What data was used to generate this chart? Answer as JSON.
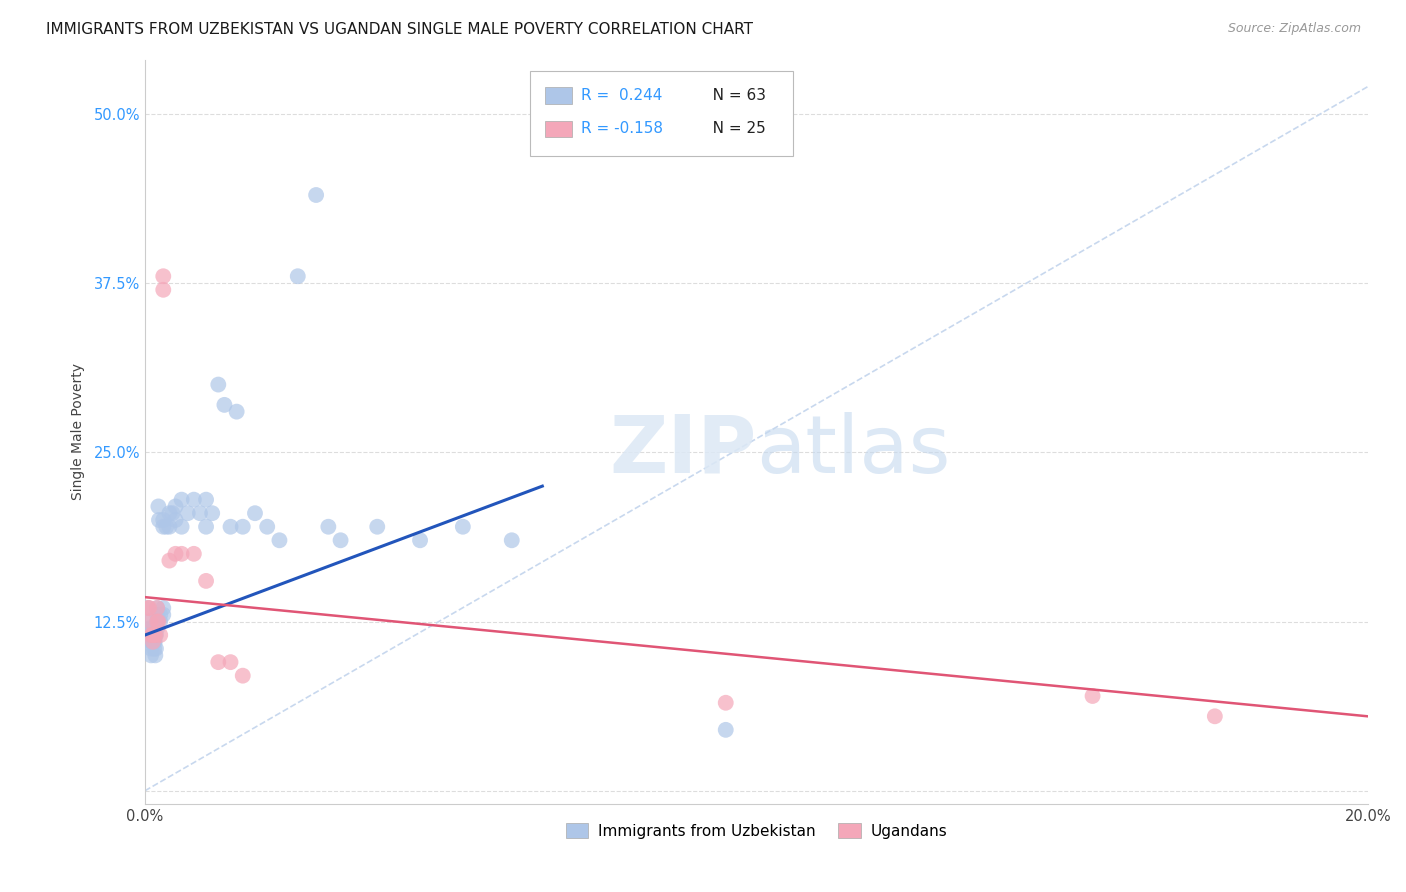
{
  "title": "IMMIGRANTS FROM UZBEKISTAN VS UGANDAN SINGLE MALE POVERTY CORRELATION CHART",
  "source": "Source: ZipAtlas.com",
  "ylabel": "Single Male Poverty",
  "xlim": [
    0.0,
    0.2
  ],
  "ylim": [
    -0.01,
    0.54
  ],
  "xticks": [
    0.0,
    0.05,
    0.1,
    0.15,
    0.2
  ],
  "xticklabels": [
    "0.0%",
    "",
    "",
    "",
    "20.0%"
  ],
  "yticks": [
    0.0,
    0.125,
    0.25,
    0.375,
    0.5
  ],
  "yticklabels": [
    "",
    "12.5%",
    "25.0%",
    "37.5%",
    "50.0%"
  ],
  "series1_label": "Immigrants from Uzbekistan",
  "series2_label": "Ugandans",
  "series1_color": "#aec6e8",
  "series2_color": "#f4a7b9",
  "series1_line_color": "#2255bb",
  "series2_line_color": "#e05575",
  "diagonal_color": "#c8d8ee",
  "background_color": "#ffffff",
  "grid_color": "#dddddd",
  "series1_R": 0.244,
  "series1_N": 63,
  "series2_R": -0.158,
  "series2_N": 25,
  "series1_x": [
    0.0005,
    0.0005,
    0.0007,
    0.0008,
    0.0009,
    0.001,
    0.001,
    0.001,
    0.0012,
    0.0012,
    0.0013,
    0.0014,
    0.0015,
    0.0015,
    0.0015,
    0.0016,
    0.0017,
    0.0017,
    0.0018,
    0.0018,
    0.002,
    0.002,
    0.002,
    0.002,
    0.0022,
    0.0023,
    0.0025,
    0.0025,
    0.003,
    0.003,
    0.003,
    0.003,
    0.0035,
    0.004,
    0.004,
    0.0045,
    0.005,
    0.005,
    0.006,
    0.006,
    0.007,
    0.008,
    0.009,
    0.01,
    0.01,
    0.011,
    0.012,
    0.013,
    0.014,
    0.015,
    0.016,
    0.018,
    0.02,
    0.022,
    0.025,
    0.028,
    0.03,
    0.032,
    0.038,
    0.045,
    0.052,
    0.06,
    0.095
  ],
  "series1_y": [
    0.135,
    0.125,
    0.12,
    0.115,
    0.115,
    0.11,
    0.105,
    0.1,
    0.115,
    0.11,
    0.115,
    0.12,
    0.115,
    0.11,
    0.105,
    0.11,
    0.115,
    0.1,
    0.115,
    0.105,
    0.135,
    0.13,
    0.125,
    0.12,
    0.21,
    0.2,
    0.13,
    0.125,
    0.135,
    0.13,
    0.2,
    0.195,
    0.195,
    0.205,
    0.195,
    0.205,
    0.21,
    0.2,
    0.215,
    0.195,
    0.205,
    0.215,
    0.205,
    0.215,
    0.195,
    0.205,
    0.3,
    0.285,
    0.195,
    0.28,
    0.195,
    0.205,
    0.195,
    0.185,
    0.38,
    0.44,
    0.195,
    0.185,
    0.195,
    0.185,
    0.195,
    0.185,
    0.045
  ],
  "series2_x": [
    0.0005,
    0.0007,
    0.0009,
    0.001,
    0.0012,
    0.0013,
    0.0015,
    0.0017,
    0.002,
    0.002,
    0.0022,
    0.0025,
    0.003,
    0.003,
    0.004,
    0.005,
    0.006,
    0.008,
    0.01,
    0.012,
    0.014,
    0.016,
    0.095,
    0.155,
    0.175
  ],
  "series2_y": [
    0.135,
    0.135,
    0.125,
    0.115,
    0.115,
    0.11,
    0.115,
    0.115,
    0.135,
    0.125,
    0.125,
    0.115,
    0.38,
    0.37,
    0.17,
    0.175,
    0.175,
    0.175,
    0.155,
    0.095,
    0.095,
    0.085,
    0.065,
    0.07,
    0.055
  ],
  "title_fontsize": 11,
  "axis_label_fontsize": 10,
  "tick_fontsize": 10.5
}
